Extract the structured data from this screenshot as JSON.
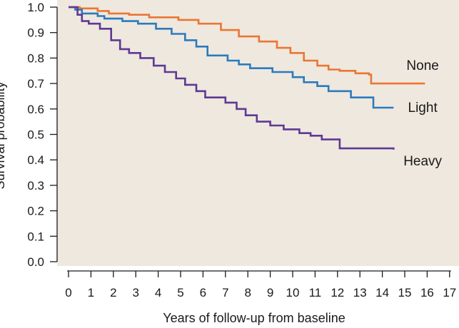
{
  "chart_data": {
    "type": "line",
    "title": "",
    "xlabel": "Years of follow-up from baseline",
    "ylabel": "Survival probability",
    "xlim": [
      0,
      17
    ],
    "ylim": [
      0,
      1
    ],
    "x_ticks": [
      "0",
      "1",
      "2",
      "3",
      "4",
      "5",
      "6",
      "7",
      "8",
      "9",
      "10",
      "11",
      "12",
      "13",
      "14",
      "15",
      "16",
      "17"
    ],
    "y_ticks": [
      "0.0",
      "0.1",
      "0.2",
      "0.3",
      "0.4",
      "0.5",
      "0.6",
      "0.7",
      "0.8",
      "0.9",
      "1.0"
    ],
    "background_color": "#efe8de",
    "grid": false,
    "step": true,
    "series": [
      {
        "name": "None",
        "color": "#ea7634",
        "x": [
          0,
          0.5,
          1.3,
          1.8,
          2.7,
          3.6,
          4.9,
          5.8,
          6.8,
          7.6,
          8.5,
          9.3,
          9.9,
          10.5,
          11.1,
          11.6,
          12.1,
          12.8,
          13.4,
          13.5,
          15.9
        ],
        "y": [
          1.0,
          0.995,
          0.985,
          0.975,
          0.97,
          0.96,
          0.95,
          0.935,
          0.91,
          0.885,
          0.865,
          0.84,
          0.82,
          0.79,
          0.77,
          0.755,
          0.75,
          0.74,
          0.735,
          0.7,
          0.7
        ]
      },
      {
        "name": "Light",
        "color": "#2a7bbf",
        "x": [
          0,
          0.3,
          0.6,
          1.3,
          1.6,
          2.4,
          3.1,
          3.9,
          4.6,
          5.2,
          5.7,
          6.2,
          7.1,
          7.6,
          8.1,
          9.1,
          10.0,
          10.5,
          11.1,
          11.6,
          12.6,
          13.6,
          14.5
        ],
        "y": [
          1.0,
          0.99,
          0.975,
          0.965,
          0.955,
          0.945,
          0.935,
          0.915,
          0.895,
          0.87,
          0.845,
          0.81,
          0.79,
          0.775,
          0.76,
          0.745,
          0.725,
          0.705,
          0.69,
          0.67,
          0.645,
          0.605,
          0.605
        ]
      },
      {
        "name": "Heavy",
        "color": "#5e3994",
        "x": [
          0,
          0.4,
          0.6,
          0.9,
          1.4,
          1.9,
          2.3,
          2.7,
          3.2,
          3.8,
          4.3,
          4.8,
          5.2,
          5.7,
          6.1,
          7.0,
          7.5,
          7.9,
          8.4,
          9.0,
          9.6,
          10.3,
          10.8,
          11.3,
          12.1,
          14.5
        ],
        "y": [
          1.0,
          0.97,
          0.945,
          0.935,
          0.915,
          0.87,
          0.835,
          0.82,
          0.8,
          0.77,
          0.745,
          0.72,
          0.695,
          0.67,
          0.645,
          0.625,
          0.6,
          0.575,
          0.55,
          0.535,
          0.52,
          0.505,
          0.495,
          0.48,
          0.445,
          0.44
        ]
      }
    ],
    "annotations": [
      {
        "text": "None",
        "x": 15.8,
        "y": 0.77
      },
      {
        "text": "Light",
        "x": 15.8,
        "y": 0.605
      },
      {
        "text": "Heavy",
        "x": 15.8,
        "y": 0.395
      }
    ]
  }
}
